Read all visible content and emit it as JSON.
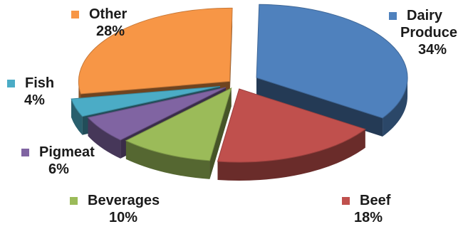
{
  "chart_data": {
    "type": "pie",
    "title": "",
    "three_d": true,
    "exploded": true,
    "slices": [
      {
        "label": "Dairy Produce",
        "label_lines": [
          "Dairy",
          "Produce"
        ],
        "value": 34,
        "display": "34%",
        "color": "#4f81bd"
      },
      {
        "label": "Beef",
        "label_lines": [
          "Beef"
        ],
        "value": 18,
        "display": "18%",
        "color": "#c0504d"
      },
      {
        "label": "Beverages",
        "label_lines": [
          "Beverages"
        ],
        "value": 10,
        "display": "10%",
        "color": "#9bbb59"
      },
      {
        "label": "Pigmeat",
        "label_lines": [
          "Pigmeat"
        ],
        "value": 6,
        "display": "6%",
        "color": "#8064a2"
      },
      {
        "label": "Fish",
        "label_lines": [
          "Fish"
        ],
        "value": 4,
        "display": "4%",
        "color": "#4bacc6"
      },
      {
        "label": "Other",
        "label_lines": [
          "Other"
        ],
        "value": 28,
        "display": "28%",
        "color": "#f79646"
      }
    ]
  }
}
